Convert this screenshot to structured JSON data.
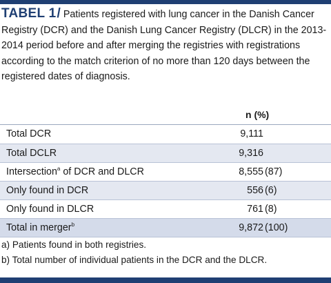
{
  "title": {
    "label": "TABEL 1",
    "slash": "/",
    "text": "Patients registered with lung cancer in the Danish Cancer Registry (DCR) and the Danish Lung Cancer Registry (DLCR) in the 2013-2014 period before and after merging the registries with registrations according to the match criterion of no  more than 120 days between the registered dates of diagnosis."
  },
  "table": {
    "column_header": "n (%)",
    "rows": [
      {
        "label": "Total DCR",
        "sup": "",
        "label_after": "",
        "n": "9,111",
        "pct": ""
      },
      {
        "label": "Total DCLR",
        "sup": "",
        "label_after": "",
        "n": "9,316",
        "pct": ""
      },
      {
        "label": "Intersection",
        "sup": "a",
        "label_after": " of DCR and DLCR",
        "n": "8,555",
        "pct": "(87)"
      },
      {
        "label": "Only found in DCR",
        "sup": "",
        "label_after": "",
        "n": "556",
        "pct": "(6)"
      },
      {
        "label": "Only found in DLCR",
        "sup": "",
        "label_after": "",
        "n": "761",
        "pct": "(8)"
      },
      {
        "label": "Total in merger",
        "sup": "b",
        "label_after": "",
        "n": "9,872",
        "pct": "(100)"
      }
    ]
  },
  "footnotes": [
    "a) Patients found in both registries.",
    "b) Total number of individual patients in the DCR and the DLCR."
  ],
  "colors": {
    "accent": "#1f3f73",
    "row_alt": "#e4e8f1",
    "row_total": "#d4dbea"
  }
}
